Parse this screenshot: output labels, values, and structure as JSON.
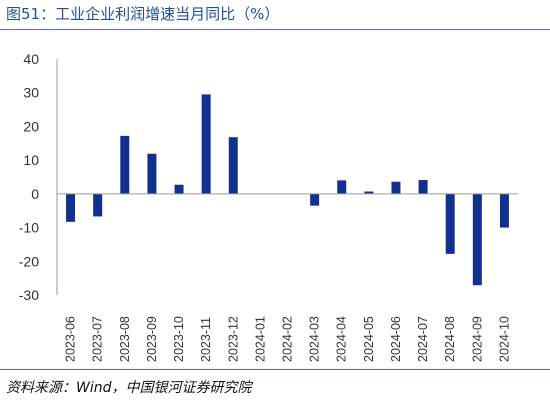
{
  "title": "图51：工业企业利润增速当月同比（%）",
  "source": "资料来源：Wind，中国银河证券研究院",
  "colors": {
    "bar": "#12318f",
    "axis": "#9b9b9b",
    "title": "#1f4e9c"
  },
  "chart_data": {
    "type": "bar",
    "title": "图51：工业企业利润增速当月同比（%）",
    "xlabel": "",
    "ylabel": "",
    "ylim": [
      -30,
      40
    ],
    "yticks": [
      -30,
      -20,
      -10,
      0,
      10,
      20,
      30,
      40
    ],
    "grid": false,
    "legend": "none",
    "categories": [
      "2023-06",
      "2023-07",
      "2023-08",
      "2023-09",
      "2023-10",
      "2023-11",
      "2023-12",
      "2024-01",
      "2024-02",
      "2024-03",
      "2024-04",
      "2024-05",
      "2024-06",
      "2024-07",
      "2024-08",
      "2024-09",
      "2024-10"
    ],
    "values": [
      -8.3,
      -6.7,
      17.2,
      11.9,
      2.7,
      29.5,
      16.8,
      null,
      null,
      -3.5,
      4.0,
      0.7,
      3.6,
      4.1,
      -17.8,
      -27.1,
      -10.0
    ]
  }
}
